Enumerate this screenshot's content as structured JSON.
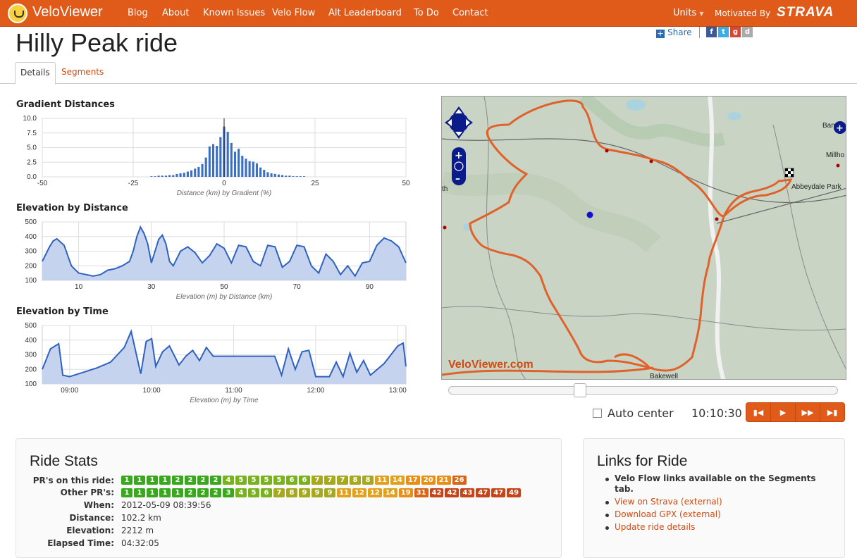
{
  "nav": {
    "brand": "VeloViewer",
    "links": [
      "Blog",
      "About",
      "Known Issues",
      "Velo Flow",
      "Alt Leaderboard",
      "To Do",
      "Contact"
    ],
    "units": "Units",
    "motivated": "Motivated By",
    "strava": "STRAVA"
  },
  "page": {
    "title": "Hilly Peak ride"
  },
  "share": {
    "label": "Share"
  },
  "tabs": [
    "Details",
    "Segments"
  ],
  "charts": {
    "gradient": {
      "title": "Gradient Distances"
    },
    "elev_dist": {
      "title": "Elevation by Distance"
    },
    "elev_time": {
      "title": "Elevation by Time"
    }
  },
  "chart_data": [
    {
      "type": "bar",
      "title": "Gradient Distances",
      "xlabel": "Distance (km) by Gradient (%)",
      "xlim": [
        -50,
        50
      ],
      "ylim": [
        0,
        10
      ],
      "xticks": [
        -50,
        -25,
        0,
        25,
        50
      ],
      "yticks": [
        0,
        2.5,
        5,
        7.5,
        10
      ],
      "ytick_labels": [
        "0.0",
        "2.5",
        "5.0",
        "7.5",
        "10.0"
      ],
      "x": [
        -20,
        -19,
        -18,
        -17,
        -16,
        -15,
        -14,
        -13,
        -12,
        -11,
        -10,
        -9,
        -8,
        -7,
        -6,
        -5,
        -4,
        -3,
        -2,
        -1,
        0,
        1,
        2,
        3,
        4,
        5,
        6,
        7,
        8,
        9,
        10,
        11,
        12,
        13,
        14,
        15,
        16,
        17,
        18,
        19,
        20,
        21,
        22
      ],
      "values": [
        0.1,
        0.1,
        0.2,
        0.2,
        0.2,
        0.3,
        0.3,
        0.5,
        0.6,
        0.7,
        0.9,
        1.1,
        1.4,
        1.7,
        2.2,
        3.3,
        5.2,
        5.6,
        5.3,
        6.8,
        8.6,
        7.7,
        5.8,
        4.3,
        4.8,
        3.6,
        3.1,
        2.7,
        2.6,
        2.3,
        1.6,
        1.2,
        0.8,
        0.6,
        0.5,
        0.4,
        0.3,
        0.2,
        0.2,
        0.1,
        0.1,
        0.1,
        0.1
      ]
    },
    {
      "type": "area",
      "title": "Elevation by Distance",
      "xlabel": "Elevation (m) by Distance (km)",
      "xlim": [
        0,
        100
      ],
      "ylim": [
        100,
        500
      ],
      "xticks": [
        10,
        30,
        50,
        70,
        90
      ],
      "yticks": [
        100,
        200,
        300,
        400,
        500
      ],
      "x": [
        0,
        2,
        3,
        4,
        6,
        8,
        10,
        12,
        14,
        16,
        18,
        20,
        22,
        24,
        25,
        26,
        27,
        28,
        29,
        30,
        31,
        32,
        33,
        34,
        35,
        36,
        38,
        40,
        42,
        44,
        46,
        48,
        50,
        52,
        54,
        56,
        58,
        60,
        62,
        64,
        66,
        68,
        70,
        72,
        74,
        76,
        78,
        80,
        82,
        84,
        86,
        88,
        90,
        92,
        94,
        96,
        98,
        100
      ],
      "values": [
        230,
        330,
        370,
        385,
        340,
        200,
        150,
        140,
        130,
        140,
        170,
        180,
        200,
        230,
        300,
        400,
        465,
        420,
        350,
        220,
        300,
        380,
        410,
        350,
        230,
        200,
        300,
        330,
        290,
        220,
        270,
        350,
        320,
        220,
        340,
        330,
        230,
        200,
        340,
        330,
        190,
        230,
        340,
        330,
        200,
        150,
        280,
        230,
        140,
        200,
        130,
        220,
        230,
        340,
        390,
        370,
        330,
        220
      ]
    },
    {
      "type": "area",
      "title": "Elevation by Time",
      "xlabel": "Elevation (m) by Time",
      "xlim": [
        "08:40",
        "13:06"
      ],
      "ylim": [
        100,
        500
      ],
      "xtick_labels": [
        "09:00",
        "10:00",
        "11:00",
        "12:00",
        "13:00"
      ],
      "yticks": [
        100,
        200,
        300,
        400,
        500
      ],
      "x": [
        "08:40",
        "08:46",
        "08:52",
        "08:55",
        "09:00",
        "09:10",
        "09:20",
        "09:30",
        "09:40",
        "09:45",
        "09:52",
        "09:56",
        "10:00",
        "10:03",
        "10:08",
        "10:13",
        "10:20",
        "10:25",
        "10:30",
        "10:35",
        "10:40",
        "10:45",
        "10:50",
        "11:00",
        "11:10",
        "11:20",
        "11:30",
        "11:35",
        "11:40",
        "11:45",
        "11:50",
        "11:55",
        "12:00",
        "12:10",
        "12:15",
        "12:20",
        "12:25",
        "12:30",
        "12:35",
        "12:40",
        "12:50",
        "13:00",
        "13:04",
        "13:06"
      ],
      "values": [
        200,
        340,
        375,
        160,
        150,
        180,
        210,
        250,
        350,
        460,
        170,
        390,
        410,
        220,
        320,
        360,
        230,
        290,
        330,
        260,
        350,
        290,
        290,
        290,
        290,
        290,
        290,
        160,
        340,
        200,
        320,
        330,
        150,
        150,
        250,
        150,
        310,
        180,
        260,
        160,
        240,
        360,
        380,
        220
      ]
    }
  ],
  "map": {
    "watermark": "VeloViewer.com",
    "places": [
      "Abbeydale Park",
      "Bakewell",
      "Bann",
      "Millho",
      "th"
    ]
  },
  "playback": {
    "auto_center": "Auto center",
    "time": "10:10:30",
    "progress": 0.34
  },
  "ride_stats": {
    "title": "Ride Stats",
    "labels": [
      "PR's on this ride:",
      "Other PR's:",
      "When:",
      "Distance:",
      "Elevation:",
      "Elapsed Time:"
    ],
    "pr_badges": [
      "1",
      "1",
      "1",
      "1",
      "2",
      "2",
      "2",
      "2",
      "4",
      "5",
      "5",
      "5",
      "5",
      "6",
      "6",
      "7",
      "7",
      "7",
      "8",
      "8",
      "11",
      "14",
      "17",
      "20",
      "21",
      "26"
    ],
    "other_badges": [
      "1",
      "1",
      "1",
      "1",
      "1",
      "2",
      "2",
      "2",
      "3",
      "4",
      "5",
      "6",
      "7",
      "8",
      "9",
      "9",
      "9",
      "11",
      "12",
      "12",
      "14",
      "19",
      "31",
      "42",
      "42",
      "43",
      "47",
      "47",
      "49"
    ],
    "when": "2012-05-09 08:39:56",
    "distance": "102.2 km",
    "elevation": "2212 m",
    "elapsed": "04:32:05"
  },
  "links": {
    "title": "Links for Ride",
    "items": [
      "Velo Flow links available on the Segments tab.",
      "View on Strava (external)",
      "Download GPX (external)",
      "Update ride details"
    ]
  }
}
